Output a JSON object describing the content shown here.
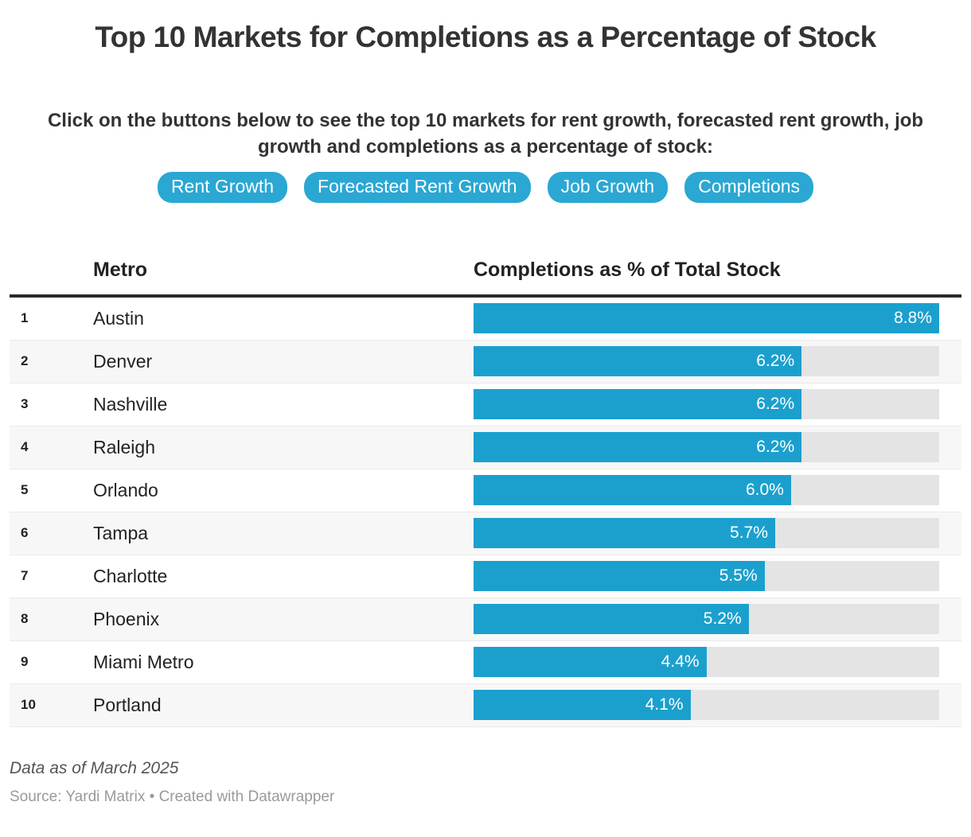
{
  "header": {
    "title": "Top 10 Markets for Completions as a Percentage of Stock",
    "subtitle": "Click on the buttons below to see the top 10 markets for rent growth, forecasted rent growth, job growth and completions as a percentage of stock:"
  },
  "toolbar": {
    "buttons": [
      {
        "label": "Rent Growth"
      },
      {
        "label": "Forecasted Rent Growth"
      },
      {
        "label": "Job Growth"
      },
      {
        "label": "Completions"
      }
    ]
  },
  "table": {
    "columns": {
      "metro": "Metro",
      "value": "Completions as % of Total Stock"
    }
  },
  "chart_data": {
    "type": "bar",
    "orientation": "horizontal",
    "title": "Top 10 Markets for Completions as a Percentage of Stock",
    "categories": [
      "Austin",
      "Denver",
      "Nashville",
      "Raleigh",
      "Orlando",
      "Tampa",
      "Charlotte",
      "Phoenix",
      "Miami Metro",
      "Portland"
    ],
    "ranks": [
      "1",
      "2",
      "3",
      "4",
      "5",
      "6",
      "7",
      "8",
      "9",
      "10"
    ],
    "values": [
      8.8,
      6.2,
      6.2,
      6.2,
      6.0,
      5.7,
      5.5,
      5.2,
      4.4,
      4.1
    ],
    "value_labels": [
      "8.8%",
      "6.2%",
      "6.2%",
      "6.2%",
      "6.0%",
      "5.7%",
      "5.5%",
      "5.2%",
      "4.4%",
      "4.1%"
    ],
    "xlabel": "Completions as % of Total Stock",
    "xlim": [
      0,
      8.8
    ],
    "grid": false,
    "legend": false,
    "bar_color": "#1ba0ce",
    "track_color": "#e4e4e4"
  },
  "footer": {
    "note": "Data as of March 2025",
    "source": "Source: Yardi Matrix • Created with Datawrapper"
  },
  "colors": {
    "accent": "#1ba0ce",
    "button_bg": "#2aa7d3",
    "bar_track": "#e4e4e4",
    "text": "#333333"
  }
}
